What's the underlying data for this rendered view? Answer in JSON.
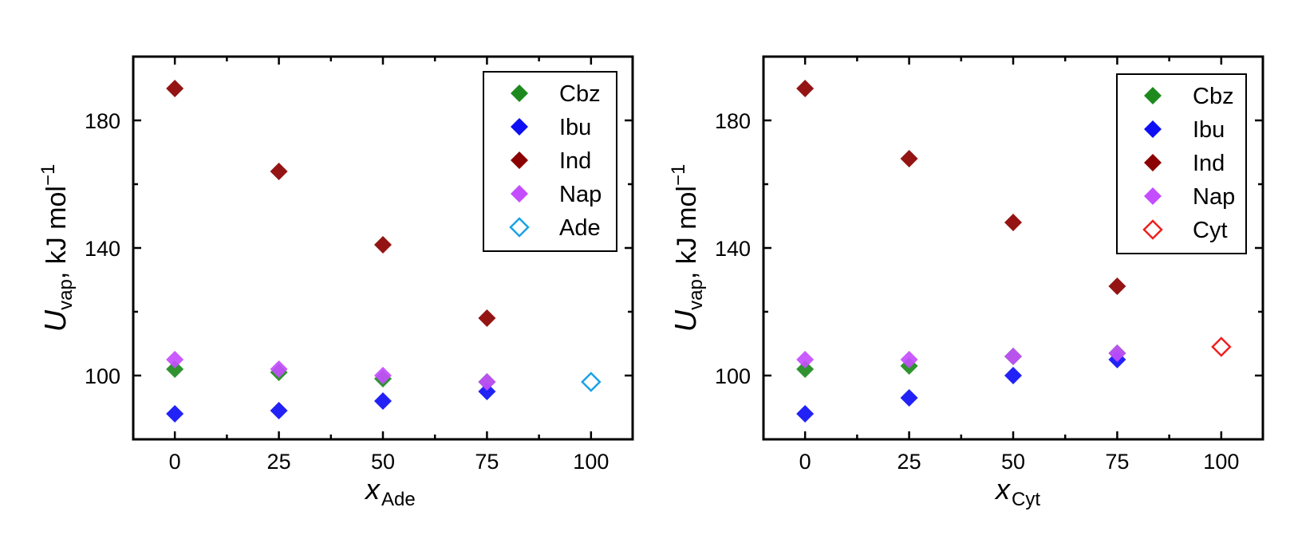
{
  "chart_data": [
    {
      "type": "scatter",
      "id": "ade",
      "title": "",
      "xlabel": "x",
      "xlabel_sub": "Ade",
      "ylabel": "U",
      "ylabel_sub": "vap",
      "ylabel_suffix": ", kJ mol",
      "ylabel_sup": "−1",
      "xlim": [
        -10,
        110
      ],
      "ylim": [
        80,
        200
      ],
      "xticks": [
        0,
        25,
        50,
        75,
        100
      ],
      "xtick_labels": [
        "0",
        "25",
        "50",
        "75",
        "100"
      ],
      "yticks": [
        100,
        140,
        180
      ],
      "ytick_labels": [
        "100",
        "140",
        "180"
      ],
      "legend_position": "top-right",
      "series": [
        {
          "name": "Cbz",
          "marker": "filled-diamond",
          "color": "#1e8a1e",
          "x": [
            0,
            25,
            50,
            75
          ],
          "y": [
            102,
            101,
            99,
            98
          ]
        },
        {
          "name": "Ibu",
          "marker": "filled-diamond",
          "color": "#0f0ff5",
          "x": [
            0,
            25,
            50,
            75
          ],
          "y": [
            88,
            89,
            92,
            95
          ]
        },
        {
          "name": "Ind",
          "marker": "filled-diamond",
          "color": "#8b0000",
          "x": [
            0,
            25,
            50,
            75
          ],
          "y": [
            190,
            164,
            141,
            118
          ]
        },
        {
          "name": "Nap",
          "marker": "filled-diamond",
          "color": "#c44dff",
          "x": [
            0,
            25,
            50,
            75
          ],
          "y": [
            105,
            102,
            100,
            98
          ]
        },
        {
          "name": "Ade",
          "marker": "open-diamond",
          "color": "#1aa3e8",
          "x": [
            100
          ],
          "y": [
            98
          ]
        }
      ]
    },
    {
      "type": "scatter",
      "id": "cyt",
      "title": "",
      "xlabel": "x",
      "xlabel_sub": "Cyt",
      "ylabel": "U",
      "ylabel_sub": "vap",
      "ylabel_suffix": ", kJ mol",
      "ylabel_sup": "−1",
      "xlim": [
        -10,
        110
      ],
      "ylim": [
        80,
        200
      ],
      "xticks": [
        0,
        25,
        50,
        75,
        100
      ],
      "xtick_labels": [
        "0",
        "25",
        "50",
        "75",
        "100"
      ],
      "yticks": [
        100,
        140,
        180
      ],
      "ytick_labels": [
        "100",
        "140",
        "180"
      ],
      "legend_position": "top-right",
      "series": [
        {
          "name": "Cbz",
          "marker": "filled-diamond",
          "color": "#1e8a1e",
          "x": [
            0,
            25,
            50,
            75
          ],
          "y": [
            102,
            103,
            106,
            107
          ]
        },
        {
          "name": "Ibu",
          "marker": "filled-diamond",
          "color": "#0f0ff5",
          "x": [
            0,
            25,
            50,
            75
          ],
          "y": [
            88,
            93,
            100,
            105
          ]
        },
        {
          "name": "Ind",
          "marker": "filled-diamond",
          "color": "#8b0000",
          "x": [
            0,
            25,
            50,
            75
          ],
          "y": [
            190,
            168,
            148,
            128
          ]
        },
        {
          "name": "Nap",
          "marker": "filled-diamond",
          "color": "#c44dff",
          "x": [
            0,
            25,
            50,
            75
          ],
          "y": [
            105,
            105,
            106,
            107
          ]
        },
        {
          "name": "Cyt",
          "marker": "open-diamond",
          "color": "#f02020",
          "x": [
            100
          ],
          "y": [
            109
          ]
        }
      ]
    }
  ]
}
